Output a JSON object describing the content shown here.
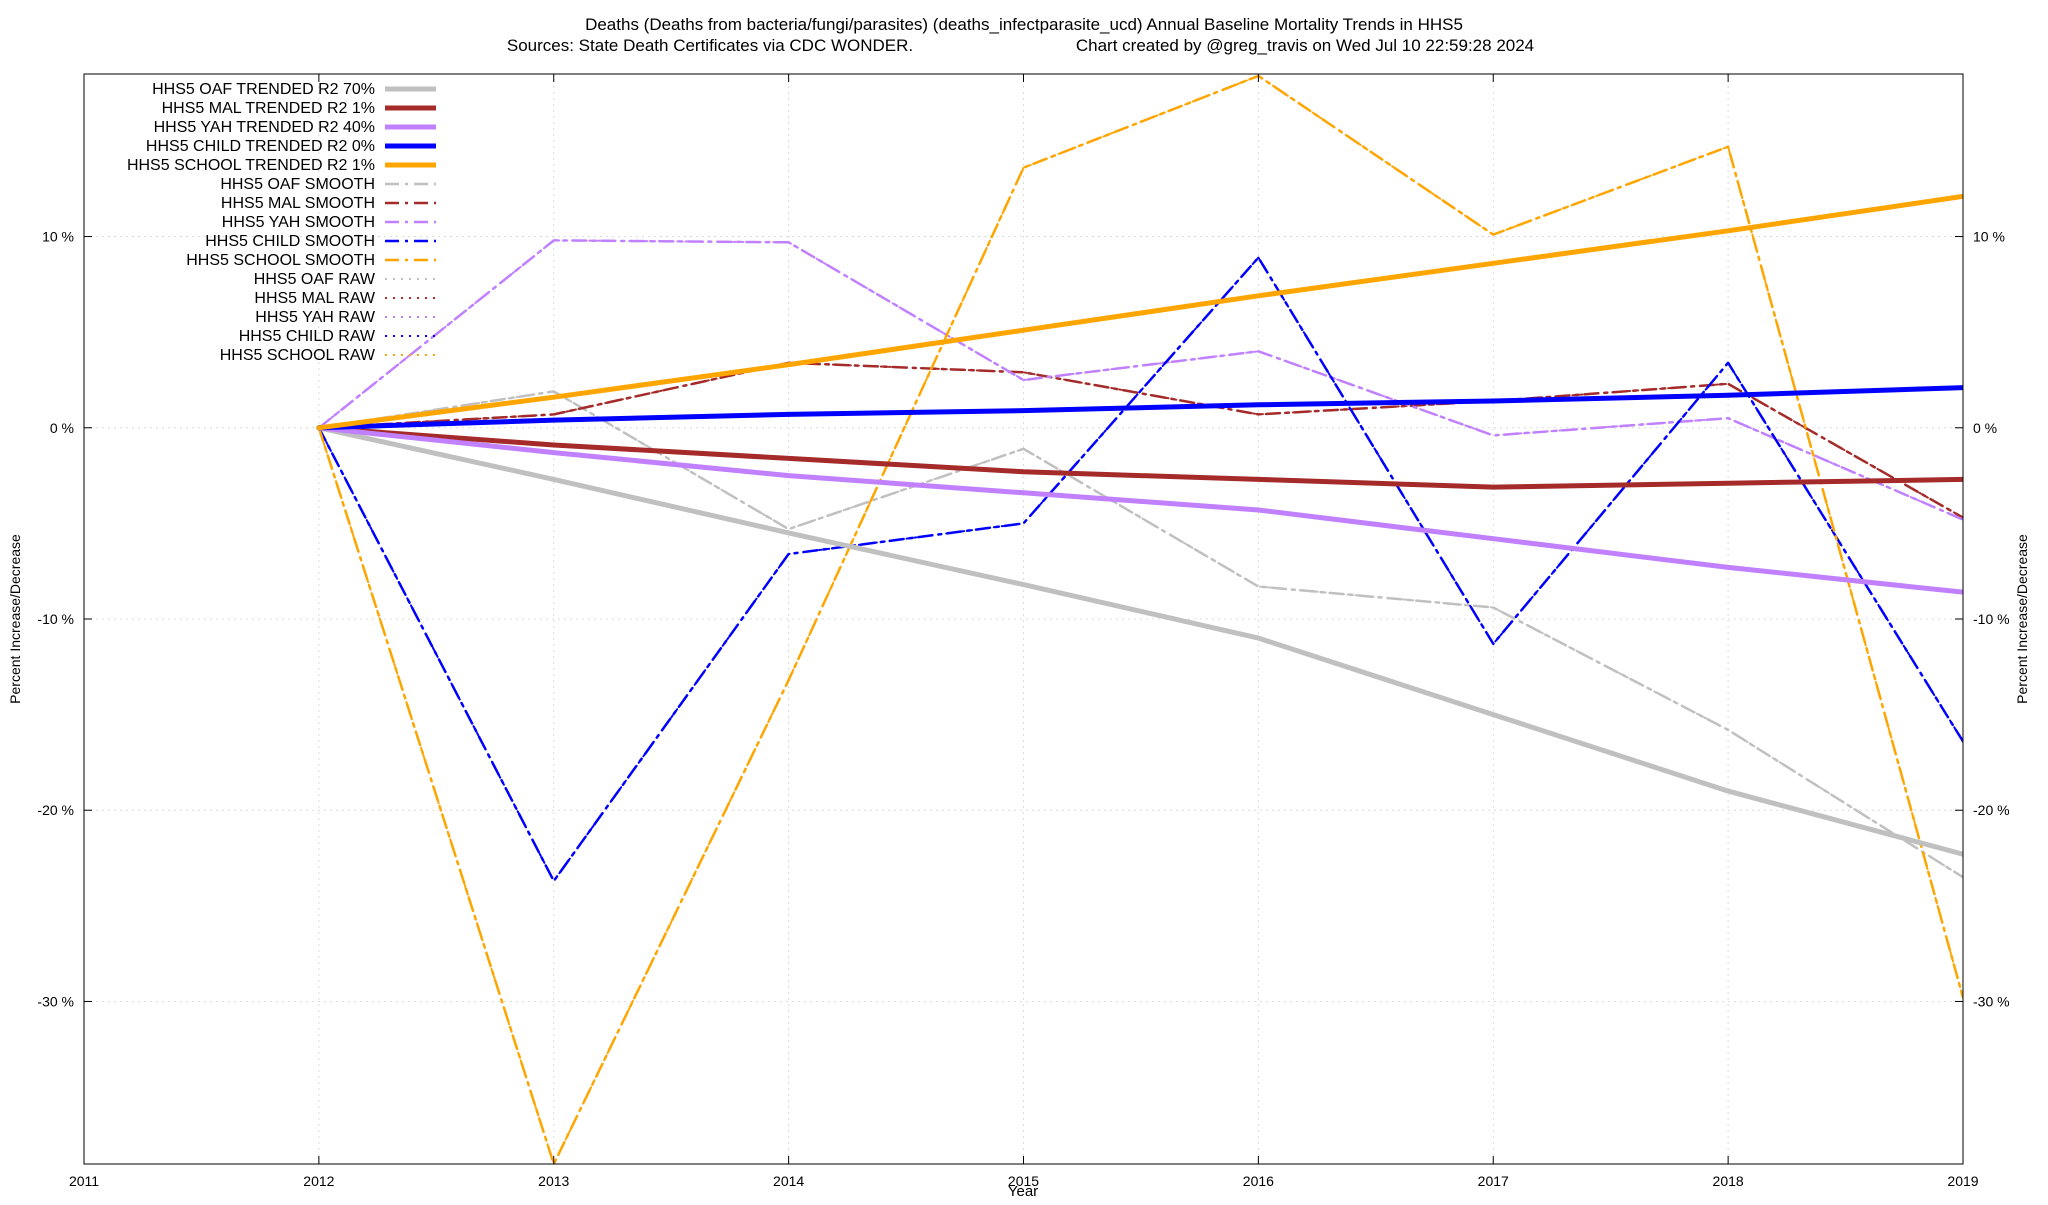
{
  "chart_data": {
    "type": "line",
    "title": "Deaths (Deaths from bacteria/fungi/parasites) (deaths_infectparasite_ucd)  Annual Baseline Mortality Trends in HHS5",
    "subtitle_left": "Sources: State Death Certificates via CDC WONDER.",
    "subtitle_right": "Chart created by @greg_travis on Wed Jul 10 22:59:28 2024",
    "xlabel": "Year",
    "ylabel": "Percent Increase/Decrease",
    "y2label": "Percent Increase/Decrease",
    "xlim": [
      2011,
      2019
    ],
    "ylim": [
      -38.5,
      18.5
    ],
    "x_ticks": [
      "2011",
      "2012",
      "2013",
      "2014",
      "2015",
      "2016",
      "2017",
      "2018",
      "2019"
    ],
    "y_ticks": [
      {
        "value": 10,
        "label": "10 %"
      },
      {
        "value": 0,
        "label": "0 %"
      },
      {
        "value": -10,
        "label": "-10 %"
      },
      {
        "value": -20,
        "label": "-20 %"
      },
      {
        "value": -30,
        "label": "-30 %"
      }
    ],
    "grid": true,
    "legend_position": "top-left",
    "colors": {
      "oaf": "#c0c0c0",
      "mal": "#a52a2a",
      "yah": "#c080ff",
      "child": "#0000ff",
      "school": "#ffa500"
    },
    "x": [
      2012,
      2013,
      2014,
      2015,
      2016,
      2017,
      2018,
      2019
    ],
    "series": [
      {
        "name": "HHS5 OAF TRENDED R2  70%",
        "style": "trended",
        "color_key": "oaf",
        "values": [
          0,
          -2.7,
          -5.5,
          -8.2,
          -11.0,
          -15.0,
          -19.0,
          -22.3
        ]
      },
      {
        "name": "HHS5 MAL TRENDED R2   1%",
        "style": "trended",
        "color_key": "mal",
        "values": [
          0,
          -0.9,
          -1.6,
          -2.3,
          -2.7,
          -3.1,
          -2.9,
          -2.7
        ]
      },
      {
        "name": "HHS5 YAH TRENDED R2  40%",
        "style": "trended",
        "color_key": "yah",
        "values": [
          0,
          -1.3,
          -2.5,
          -3.4,
          -4.3,
          -5.8,
          -7.3,
          -8.6
        ]
      },
      {
        "name": "HHS5 CHILD TRENDED R2   0%",
        "style": "trended",
        "color_key": "child",
        "values": [
          0,
          0.4,
          0.7,
          0.9,
          1.2,
          1.4,
          1.7,
          2.1
        ]
      },
      {
        "name": "HHS5 SCHOOL TRENDED R2   1%",
        "style": "trended",
        "color_key": "school",
        "values": [
          0,
          1.6,
          3.3,
          5.1,
          6.9,
          8.6,
          10.3,
          12.1
        ]
      },
      {
        "name": "HHS5 OAF SMOOTH",
        "style": "smooth",
        "color_key": "oaf",
        "values": [
          0,
          1.9,
          -5.3,
          -1.1,
          -8.3,
          -9.4,
          -15.8,
          -23.5
        ]
      },
      {
        "name": "HHS5 MAL SMOOTH",
        "style": "smooth",
        "color_key": "mal",
        "values": [
          0,
          0.7,
          3.4,
          2.9,
          0.7,
          1.4,
          2.3,
          -4.7
        ]
      },
      {
        "name": "HHS5 YAH SMOOTH",
        "style": "smooth",
        "color_key": "yah",
        "values": [
          0,
          9.8,
          9.7,
          2.5,
          4.0,
          -0.4,
          0.5,
          -4.8
        ]
      },
      {
        "name": "HHS5 CHILD SMOOTH",
        "style": "smooth",
        "color_key": "child",
        "values": [
          0,
          -23.7,
          -6.6,
          -5.0,
          8.9,
          -11.3,
          3.4,
          -16.4
        ]
      },
      {
        "name": "HHS5 SCHOOL SMOOTH",
        "style": "smooth",
        "color_key": "school",
        "values": [
          0,
          -38.5,
          -13.2,
          13.6,
          18.4,
          10.1,
          14.7,
          -29.8
        ]
      },
      {
        "name": "HHS5 OAF RAW",
        "style": "raw",
        "color_key": "oaf",
        "values": [
          0,
          1.9,
          -5.3,
          -1.1,
          -8.3,
          -9.4,
          -15.8,
          -23.5
        ]
      },
      {
        "name": "HHS5 MAL RAW",
        "style": "raw",
        "color_key": "mal",
        "values": [
          0,
          0.7,
          3.4,
          2.9,
          0.7,
          1.4,
          2.3,
          -4.7
        ]
      },
      {
        "name": "HHS5 YAH RAW",
        "style": "raw",
        "color_key": "yah",
        "values": [
          0,
          9.8,
          9.7,
          2.5,
          4.0,
          -0.4,
          0.5,
          -4.8
        ]
      },
      {
        "name": "HHS5 CHILD RAW",
        "style": "raw",
        "color_key": "child",
        "values": [
          0,
          -23.7,
          -6.6,
          -5.0,
          8.9,
          -11.3,
          3.4,
          -16.4
        ]
      },
      {
        "name": "HHS5 SCHOOL RAW",
        "style": "raw",
        "color_key": "school",
        "values": [
          0,
          -38.5,
          -13.2,
          13.6,
          18.4,
          10.1,
          14.7,
          -29.8
        ]
      }
    ]
  }
}
